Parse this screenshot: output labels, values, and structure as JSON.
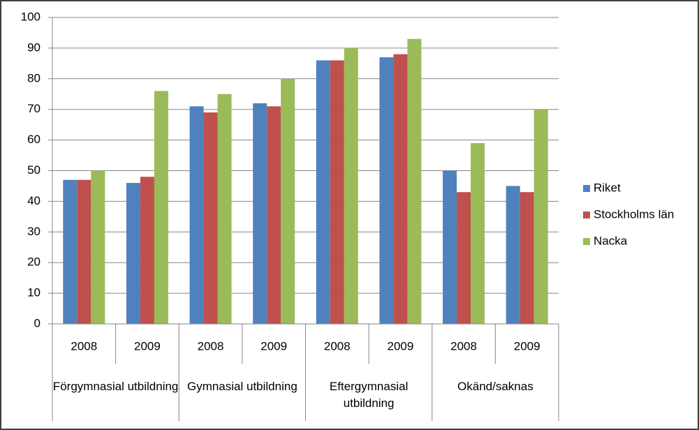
{
  "chart_data": {
    "type": "bar",
    "categories": [
      "2008",
      "2009",
      "2008",
      "2009",
      "2008",
      "2009",
      "2008",
      "2009"
    ],
    "groups": [
      "Förgymnasial utbildning",
      "Gymnasial utbildning",
      "Eftergymnasial utbildning",
      "Okänd/saknas"
    ],
    "series": [
      {
        "name": "Riket",
        "color": "#4f81bd",
        "values": [
          47,
          46,
          71,
          72,
          86,
          87,
          50,
          45
        ]
      },
      {
        "name": "Stockholms län",
        "color": "#c0504d",
        "values": [
          47,
          48,
          69,
          71,
          86,
          88,
          43,
          43
        ]
      },
      {
        "name": "Nacka",
        "color": "#9bbb59",
        "values": [
          50,
          76,
          75,
          80,
          90,
          93,
          59,
          70
        ]
      }
    ],
    "ylim": [
      0,
      100
    ],
    "yticks": [
      0,
      10,
      20,
      30,
      40,
      50,
      60,
      70,
      80,
      90,
      100
    ],
    "grid": true,
    "legend": "right"
  }
}
